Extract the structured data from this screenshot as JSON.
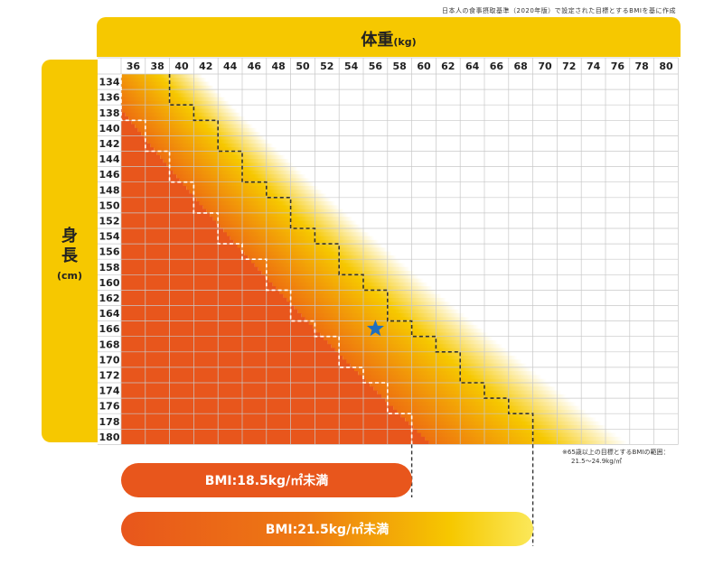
{
  "source_note": "日本人の食事摂取基準（2020年版）で設定された目標とするBMIを基に作成",
  "x_axis": {
    "title": "体重",
    "unit": "(kg)"
  },
  "y_axis": {
    "title_line1": "身",
    "title_line2": "長",
    "unit": "(cm)"
  },
  "chart_data": {
    "type": "heatmap",
    "x_label": "体重(kg)",
    "y_label": "身長(cm)",
    "x_ticks": [
      36,
      38,
      40,
      42,
      44,
      46,
      48,
      50,
      52,
      54,
      56,
      58,
      60,
      62,
      64,
      66,
      68,
      70,
      72,
      74,
      76,
      78,
      80
    ],
    "y_ticks": [
      134,
      136,
      138,
      140,
      142,
      144,
      146,
      148,
      150,
      152,
      154,
      156,
      158,
      160,
      162,
      164,
      166,
      168,
      170,
      172,
      174,
      176,
      178,
      180
    ],
    "bmi_lines": [
      {
        "label": "BMI:18.5kg/㎡未満",
        "bmi": 18.5,
        "color": "#e8561c"
      },
      {
        "label": "BMI:21.5kg/㎡未満",
        "bmi": 21.5,
        "color": "#f6c800"
      }
    ],
    "marker": {
      "weight": 56,
      "height": 166,
      "color": "#1f6fbf",
      "shape": "star"
    },
    "footnote_line1": "※65歳以上の目標とするBMIの範囲：",
    "footnote_line2": "21.5～24.9kg/㎡"
  },
  "colors": {
    "header": "#f6c800",
    "low": "#e8561c",
    "mid": "#f6c800",
    "grid": "#cccccc"
  }
}
